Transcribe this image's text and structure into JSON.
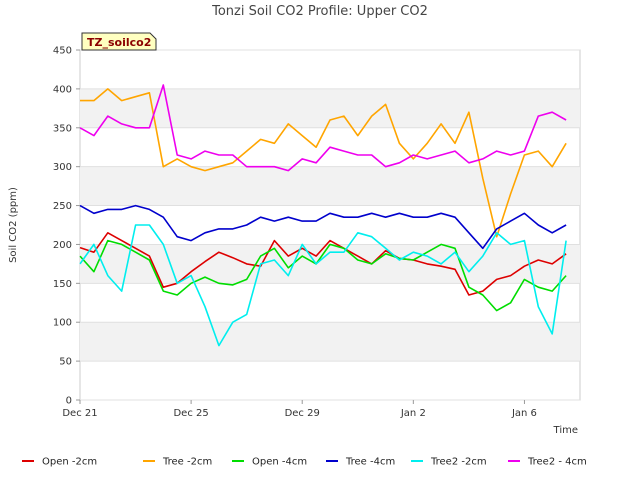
{
  "chart_data": {
    "type": "line",
    "title": "Tonzi Soil CO2 Profile: Upper CO2",
    "xlabel": "Time",
    "ylabel": "Soil CO2 (ppm)",
    "tag": "TZ_soilco2",
    "ylim": [
      0,
      450
    ],
    "yticks": [
      0,
      50,
      100,
      150,
      200,
      250,
      300,
      350,
      400,
      450
    ],
    "xlim": [
      "Dec 21",
      "Jan 8"
    ],
    "xticks": [
      {
        "label": "Dec 21",
        "day": 0
      },
      {
        "label": "Dec 25",
        "day": 4
      },
      {
        "label": "Dec 29",
        "day": 8
      },
      {
        "label": "Jan 2",
        "day": 12
      },
      {
        "label": "Jan 6",
        "day": 16
      }
    ],
    "grid": "horizontal bands",
    "legend_position": "bottom",
    "x": [
      0.0,
      0.5,
      1.0,
      1.5,
      2.0,
      2.5,
      3.0,
      3.5,
      4.0,
      4.5,
      5.0,
      5.5,
      6.0,
      6.5,
      7.0,
      7.5,
      8.0,
      8.5,
      9.0,
      9.5,
      10.0,
      10.5,
      11.0,
      11.5,
      12.0,
      12.5,
      13.0,
      13.5,
      14.0,
      14.5,
      15.0,
      15.5,
      16.0,
      16.5,
      17.0,
      17.5
    ],
    "series": [
      {
        "name": "Open -2cm",
        "color": "#dd0000",
        "values": [
          196,
          190,
          215,
          205,
          195,
          185,
          145,
          150,
          165,
          178,
          190,
          183,
          175,
          172,
          205,
          185,
          195,
          185,
          205,
          195,
          185,
          175,
          192,
          182,
          180,
          175,
          172,
          168,
          135,
          140,
          155,
          160,
          172,
          180,
          175,
          188
        ]
      },
      {
        "name": "Tree -2cm",
        "color": "#ffa500",
        "values": [
          385,
          385,
          400,
          385,
          390,
          395,
          300,
          310,
          300,
          295,
          300,
          305,
          320,
          335,
          330,
          355,
          340,
          325,
          360,
          365,
          340,
          365,
          380,
          330,
          310,
          330,
          355,
          330,
          370,
          285,
          210,
          265,
          315,
          320,
          300,
          330
        ]
      },
      {
        "name": "Open -4cm",
        "color": "#00dd00",
        "values": [
          185,
          165,
          205,
          200,
          190,
          180,
          140,
          135,
          150,
          158,
          150,
          148,
          155,
          185,
          195,
          170,
          185,
          175,
          200,
          195,
          180,
          175,
          188,
          182,
          180,
          190,
          200,
          195,
          145,
          135,
          115,
          125,
          155,
          145,
          140,
          160
        ]
      },
      {
        "name": "Tree -4cm",
        "color": "#0000cc",
        "values": [
          250,
          240,
          245,
          245,
          250,
          245,
          235,
          210,
          205,
          215,
          220,
          220,
          225,
          235,
          230,
          235,
          230,
          230,
          240,
          235,
          235,
          240,
          235,
          240,
          235,
          235,
          240,
          235,
          215,
          195,
          220,
          230,
          240,
          225,
          215,
          225
        ]
      },
      {
        "name": "Tree2 -2cm",
        "color": "#00eeee",
        "values": [
          175,
          200,
          160,
          140,
          225,
          225,
          200,
          150,
          160,
          120,
          70,
          100,
          110,
          175,
          180,
          160,
          200,
          175,
          190,
          190,
          215,
          210,
          195,
          180,
          190,
          185,
          175,
          190,
          165,
          185,
          215,
          200,
          205,
          120,
          85,
          205
        ]
      },
      {
        "name": "Tree2 - 4cm",
        "color": "#ee00ee",
        "values": [
          350,
          340,
          365,
          355,
          350,
          350,
          405,
          315,
          310,
          320,
          315,
          315,
          300,
          300,
          300,
          295,
          310,
          305,
          325,
          320,
          315,
          315,
          300,
          305,
          315,
          310,
          315,
          320,
          305,
          310,
          320,
          315,
          320,
          365,
          370,
          360
        ]
      }
    ]
  }
}
